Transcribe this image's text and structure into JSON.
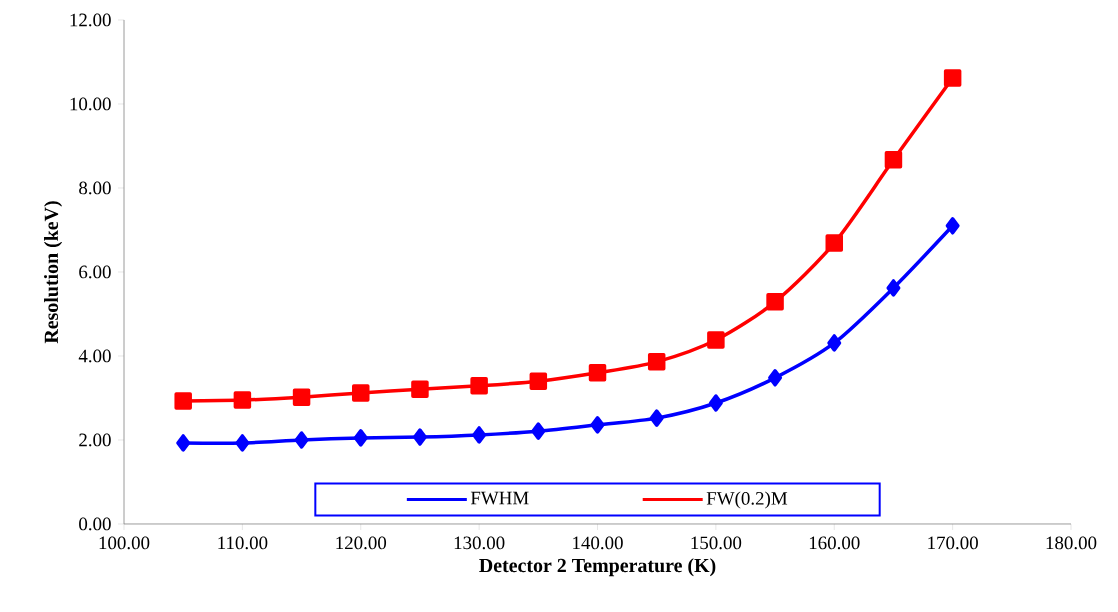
{
  "chart_data": {
    "type": "line",
    "xlabel": "Detector 2 Temperature (K)",
    "ylabel": "Resolution (keV)",
    "x": [
      105,
      110,
      115,
      120,
      125,
      130,
      135,
      140,
      145,
      150,
      155,
      160,
      165,
      170
    ],
    "series": [
      {
        "name": "FWHM",
        "color": "#0000ff",
        "marker": "diamond",
        "values": [
          1.93,
          1.93,
          2.0,
          2.05,
          2.07,
          2.12,
          2.21,
          2.36,
          2.52,
          2.88,
          3.48,
          4.31,
          5.62,
          7.1
        ]
      },
      {
        "name": "FW(0.2)M",
        "color": "#ff0000",
        "marker": "square",
        "values": [
          2.93,
          2.95,
          3.02,
          3.12,
          3.21,
          3.29,
          3.4,
          3.6,
          3.86,
          4.38,
          5.29,
          6.69,
          8.67,
          10.62
        ]
      }
    ],
    "xlim": [
      100,
      180
    ],
    "ylim": [
      0,
      12
    ],
    "xticks": [
      {
        "value": 100,
        "label": "100.00"
      },
      {
        "value": 110,
        "label": "110.00"
      },
      {
        "value": 120,
        "label": "120.00"
      },
      {
        "value": 130,
        "label": "130.00"
      },
      {
        "value": 140,
        "label": "140.00"
      },
      {
        "value": 150,
        "label": "150.00"
      },
      {
        "value": 160,
        "label": "160.00"
      },
      {
        "value": 170,
        "label": "170.00"
      },
      {
        "value": 180,
        "label": "180.00"
      }
    ],
    "yticks": [
      {
        "value": 0,
        "label": "0.00"
      },
      {
        "value": 2,
        "label": "2.00"
      },
      {
        "value": 4,
        "label": "4.00"
      },
      {
        "value": 6,
        "label": "6.00"
      },
      {
        "value": 8,
        "label": "8.00"
      },
      {
        "value": 10,
        "label": "10.00"
      },
      {
        "value": 12,
        "label": "12.00"
      }
    ],
    "legend": "bottom",
    "grid": false
  }
}
